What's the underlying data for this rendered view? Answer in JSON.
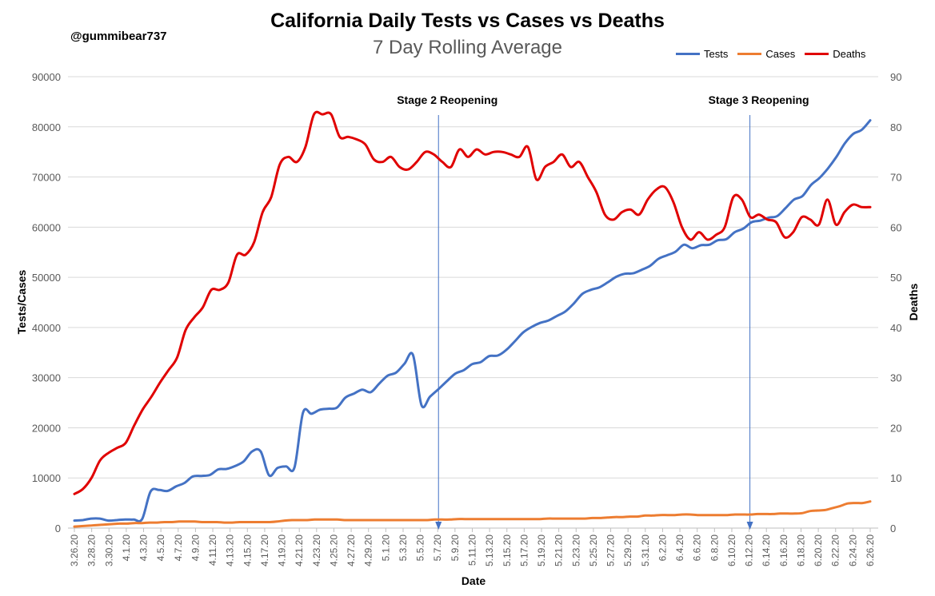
{
  "chart_data": {
    "type": "line",
    "title": "California Daily Tests vs Cases vs Deaths",
    "subtitle": "7 Day Rolling Average",
    "credit": "@gummibear737",
    "xlabel": "Date",
    "ylabel_left": "Tests/Cases",
    "ylabel_right": "Deaths",
    "ylim_left": [
      0,
      90000
    ],
    "ylim_right": [
      0,
      90
    ],
    "yticks_left": [
      "0",
      "10000",
      "20000",
      "30000",
      "40000",
      "50000",
      "60000",
      "70000",
      "80000",
      "90000"
    ],
    "yticks_right": [
      "0",
      "10",
      "20",
      "30",
      "40",
      "50",
      "60",
      "70",
      "80",
      "90"
    ],
    "grid": true,
    "legend_position": "top-right",
    "x_tick_labels": [
      "3.26.20",
      "3.28.20",
      "3.30.20",
      "4.1.20",
      "4.3.20",
      "4.5.20",
      "4.7.20",
      "4.9.20",
      "4.11.20",
      "4.13.20",
      "4.15.20",
      "4.17.20",
      "4.19.20",
      "4.21.20",
      "4.23.20",
      "4.25.20",
      "4.27.20",
      "4.29.20",
      "5.1.20",
      "5.3.20",
      "5.5.20",
      "5.7.20",
      "5.9.20",
      "5.11.20",
      "5.13.20",
      "5.15.20",
      "5.17.20",
      "5.19.20",
      "5.21.20",
      "5.23.20",
      "5.25.20",
      "5.27.20",
      "5.29.20",
      "5.31.20",
      "6.2.20",
      "6.4.20",
      "6.6.20",
      "6.8.20",
      "6.10.20",
      "6.12.20",
      "6.14.20",
      "6.16.20",
      "6.18.20",
      "6.20.20",
      "6.22.20",
      "6.24.20",
      "6.26.20"
    ],
    "series": [
      {
        "name": "Tests",
        "color": "#4472C4",
        "axis": "left",
        "values": [
          1500,
          1600,
          1900,
          1900,
          1500,
          1600,
          1700,
          1700,
          1800,
          7300,
          7600,
          7400,
          8300,
          9000,
          10300,
          10400,
          10600,
          11700,
          11800,
          12400,
          13300,
          15300,
          15300,
          10500,
          12000,
          12300,
          12100,
          23000,
          22800,
          23600,
          23800,
          24000,
          26000,
          26800,
          27600,
          27100,
          28800,
          30400,
          31000,
          32800,
          34500,
          24500,
          26200,
          27700,
          29300,
          30800,
          31500,
          32700,
          33100,
          34300,
          34400,
          35500,
          37200,
          39000,
          40100,
          40900,
          41400,
          42300,
          43200,
          44800,
          46700,
          47500,
          48000,
          49000,
          50100,
          50700,
          50800,
          51500,
          52300,
          53700,
          54400,
          55100,
          56500,
          55800,
          56400,
          56500,
          57400,
          57600,
          59000,
          59700,
          61000,
          61300,
          61900,
          62200,
          63800,
          65500,
          66200,
          68400,
          69800,
          71700,
          74000,
          76700,
          78600,
          79400,
          81300
        ]
      },
      {
        "name": "Cases",
        "color": "#ED7D31",
        "axis": "left",
        "values": [
          300,
          400,
          500,
          600,
          700,
          800,
          900,
          900,
          1000,
          1000,
          1100,
          1100,
          1200,
          1200,
          1300,
          1300,
          1300,
          1200,
          1200,
          1200,
          1100,
          1100,
          1200,
          1200,
          1200,
          1200,
          1200,
          1300,
          1500,
          1600,
          1600,
          1600,
          1700,
          1700,
          1700,
          1700,
          1600,
          1600,
          1600,
          1600,
          1600,
          1600,
          1600,
          1600,
          1600,
          1600,
          1600,
          1600,
          1700,
          1700,
          1700,
          1800,
          1800,
          1800,
          1800,
          1800,
          1800,
          1800,
          1800,
          1800,
          1800,
          1800,
          1800,
          1900,
          1900,
          1900,
          1900,
          1900,
          1900,
          2000,
          2000,
          2100,
          2200,
          2200,
          2300,
          2300,
          2500,
          2500,
          2600,
          2600,
          2600,
          2700,
          2700,
          2600,
          2600,
          2600,
          2600,
          2600,
          2700,
          2700,
          2700,
          2800,
          2800,
          2800,
          2900,
          2900,
          2900,
          3000,
          3400,
          3500,
          3600,
          4000,
          4400,
          4900,
          5000,
          5000,
          5300
        ]
      },
      {
        "name": "Deaths",
        "color": "#E00000",
        "axis": "right",
        "values": [
          6.8,
          7.8,
          10,
          13.5,
          15,
          16,
          17,
          20.5,
          23.7,
          26.2,
          29,
          31.5,
          34,
          39.5,
          42,
          44,
          47.5,
          47.5,
          49,
          54.5,
          54.5,
          57,
          63,
          66,
          72.5,
          74,
          73,
          76,
          82.5,
          82.5,
          82.5,
          78,
          78,
          77.5,
          76.5,
          73.5,
          73,
          74,
          72,
          71.5,
          73,
          75,
          74.5,
          73,
          72,
          75.5,
          74,
          75.5,
          74.5,
          75,
          75,
          74.5,
          74,
          76,
          69.5,
          72,
          73,
          74.5,
          72,
          73,
          70,
          67,
          62.5,
          61.5,
          63,
          63.5,
          62.5,
          65.5,
          67.5,
          68,
          65,
          60,
          57.5,
          59,
          57.5,
          58.5,
          60,
          66,
          65.5,
          62,
          62.5,
          61.5,
          61,
          58,
          59,
          62,
          61.5,
          60.5,
          65.5,
          60.5,
          63,
          64.5,
          64,
          64
        ]
      }
    ],
    "annotations": [
      {
        "text": "Stage 2 Reopening",
        "date": "5.7.20"
      },
      {
        "text": "Stage 3 Reopening",
        "date": "6.12.20"
      }
    ]
  }
}
